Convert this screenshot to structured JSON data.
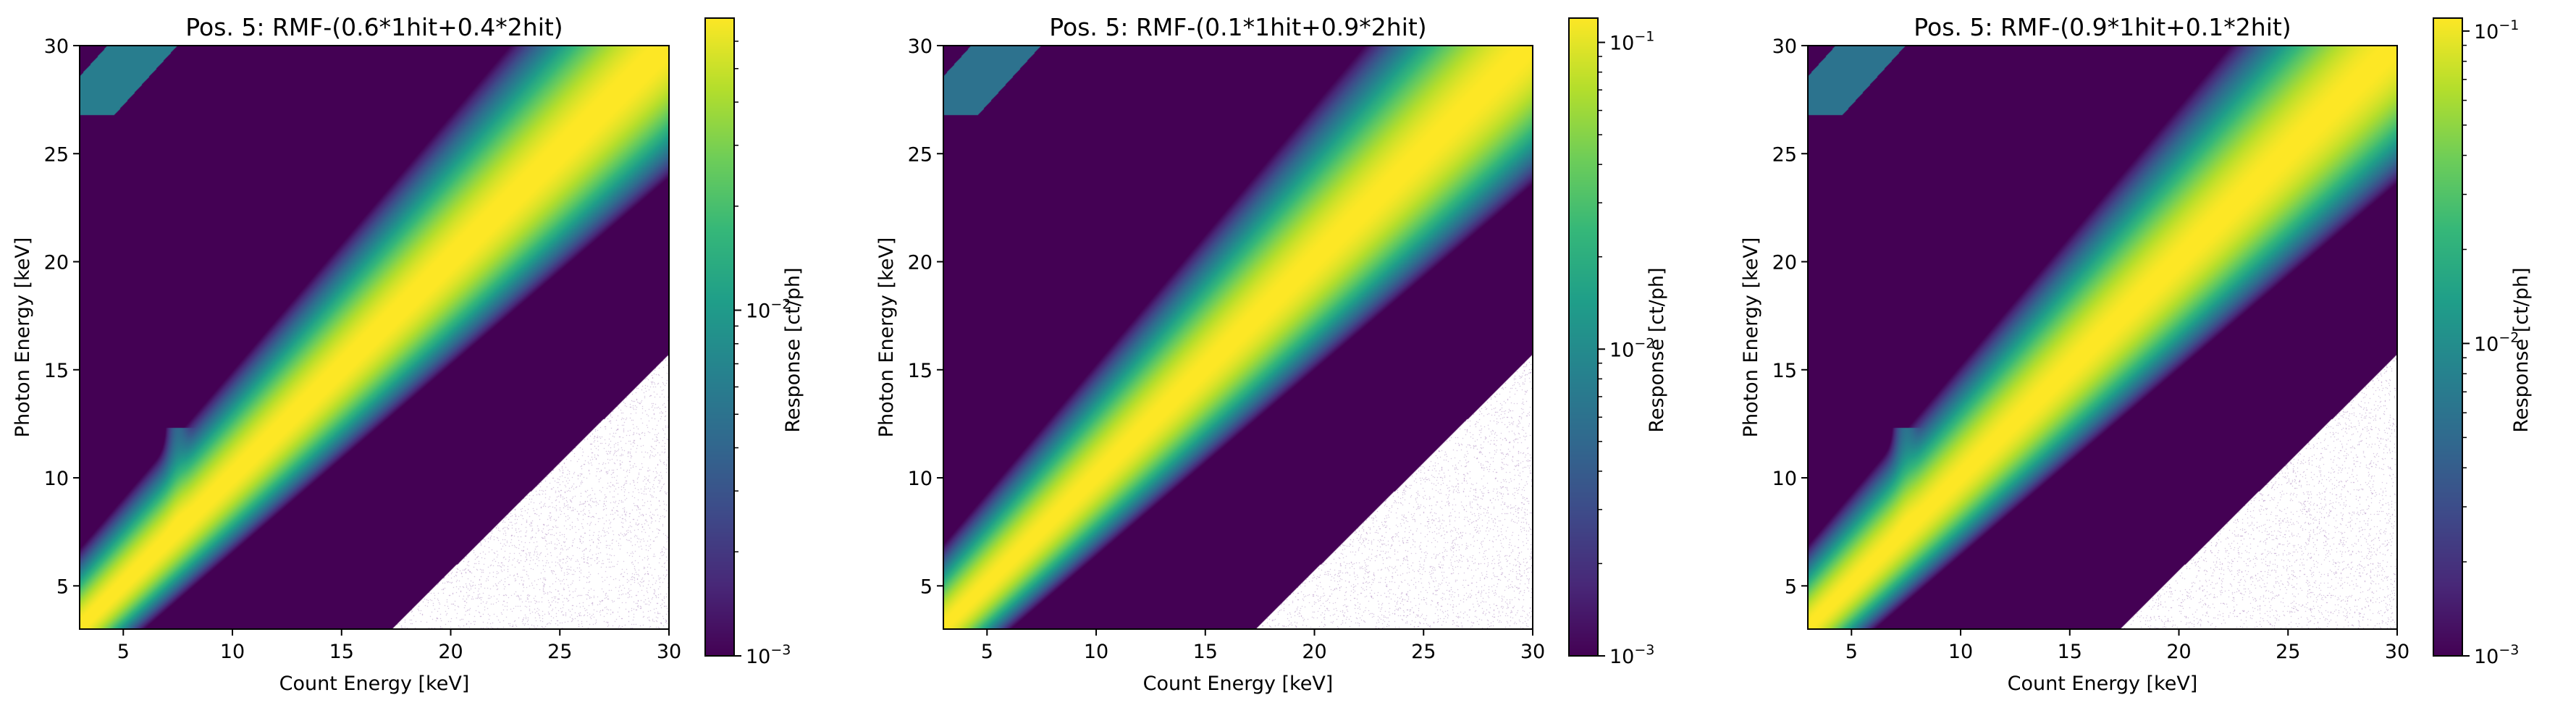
{
  "chart_data": [
    {
      "type": "heatmap",
      "title": "Pos. 5: RMF-(0.6*1hit+0.4*2hit)",
      "xlabel": "Count Energy [keV]",
      "ylabel": "Photon Energy [keV]",
      "xlim": [
        3,
        30
      ],
      "ylim": [
        3,
        30
      ],
      "x_ticks": [
        "5",
        "10",
        "15",
        "20",
        "25",
        "30"
      ],
      "y_ticks": [
        "5",
        "10",
        "15",
        "20",
        "25",
        "30"
      ],
      "colorbar": {
        "label": "Response [ct/ph]",
        "scale": "log",
        "range": [
          0.001,
          0.07
        ],
        "tick_labels": [
          {
            "base": "10",
            "exp": "−3",
            "value": 0.001
          },
          {
            "base": "10",
            "exp": "−2",
            "value": 0.01
          }
        ],
        "colormap": "viridis"
      },
      "ridge": {
        "slope": 1,
        "intercept": 0.1,
        "peak_response": 0.07
      },
      "escape_feature_keV": 7.5,
      "escape_strength": 0.35,
      "blank_region": "lower-right (count energy > photon energy + ~14 keV)"
    },
    {
      "type": "heatmap",
      "title": "Pos. 5: RMF-(0.1*1hit+0.9*2hit)",
      "xlabel": "Count Energy [keV]",
      "ylabel": "Photon Energy [keV]",
      "xlim": [
        3,
        30
      ],
      "ylim": [
        3,
        30
      ],
      "x_ticks": [
        "5",
        "10",
        "15",
        "20",
        "25",
        "30"
      ],
      "y_ticks": [
        "5",
        "10",
        "15",
        "20",
        "25",
        "30"
      ],
      "colorbar": {
        "label": "Response [ct/ph]",
        "scale": "log",
        "range": [
          0.001,
          0.12
        ],
        "tick_labels": [
          {
            "base": "10",
            "exp": "−3",
            "value": 0.001
          },
          {
            "base": "10",
            "exp": "−2",
            "value": 0.01
          },
          {
            "base": "10",
            "exp": "−1",
            "value": 0.1
          }
        ],
        "colormap": "viridis"
      },
      "ridge": {
        "slope": 1,
        "intercept": 0.1,
        "peak_response": 0.12
      },
      "escape_feature_keV": 7.5,
      "escape_strength": 0.0,
      "blank_region": "lower-right (count energy > photon energy + ~14 keV)"
    },
    {
      "type": "heatmap",
      "title": "Pos. 5: RMF-(0.9*1hit+0.1*2hit)",
      "xlabel": "Count Energy [keV]",
      "ylabel": "Photon Energy [keV]",
      "xlim": [
        3,
        30
      ],
      "ylim": [
        3,
        30
      ],
      "x_ticks": [
        "5",
        "10",
        "15",
        "20",
        "25",
        "30"
      ],
      "y_ticks": [
        "5",
        "10",
        "15",
        "20",
        "25",
        "30"
      ],
      "colorbar": {
        "label": "Response [ct/ph]",
        "scale": "log",
        "range": [
          0.001,
          0.11
        ],
        "tick_labels": [
          {
            "base": "10",
            "exp": "−3",
            "value": 0.001
          },
          {
            "base": "10",
            "exp": "−2",
            "value": 0.01
          },
          {
            "base": "10",
            "exp": "−1",
            "value": 0.1
          }
        ],
        "colormap": "viridis"
      },
      "ridge": {
        "slope": 1,
        "intercept": 0.1,
        "peak_response": 0.11
      },
      "escape_feature_keV": 7.5,
      "escape_strength": 0.5,
      "blank_region": "lower-right (count energy > photon energy + ~14 keV)"
    }
  ]
}
